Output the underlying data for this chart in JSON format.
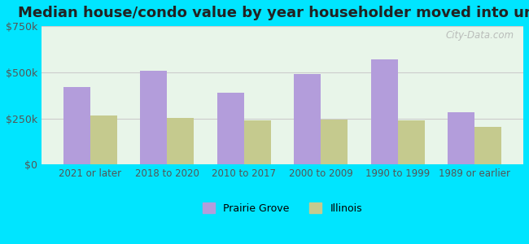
{
  "title": "Median house/condo value by year householder moved into unit",
  "categories": [
    "2021 or later",
    "2018 to 2020",
    "2010 to 2017",
    "2000 to 2009",
    "1990 to 1999",
    "1989 or earlier"
  ],
  "prairie_grove": [
    420000,
    510000,
    390000,
    490000,
    570000,
    285000
  ],
  "illinois": [
    265000,
    252000,
    240000,
    245000,
    237000,
    205000
  ],
  "prairie_grove_color": "#b39ddb",
  "illinois_color": "#c5ca8e",
  "ylim": [
    0,
    750000
  ],
  "yticks": [
    0,
    250000,
    500000,
    750000
  ],
  "ytick_labels": [
    "$0",
    "$250k",
    "$500k",
    "$750k"
  ],
  "background_color": "#e8f5e9",
  "outer_background": "#00e5ff",
  "title_fontsize": 13,
  "legend_prairie": "Prairie Grove",
  "legend_illinois": "Illinois",
  "bar_width": 0.35,
  "gridcolor": "#cccccc",
  "watermark": "City-Data.com"
}
